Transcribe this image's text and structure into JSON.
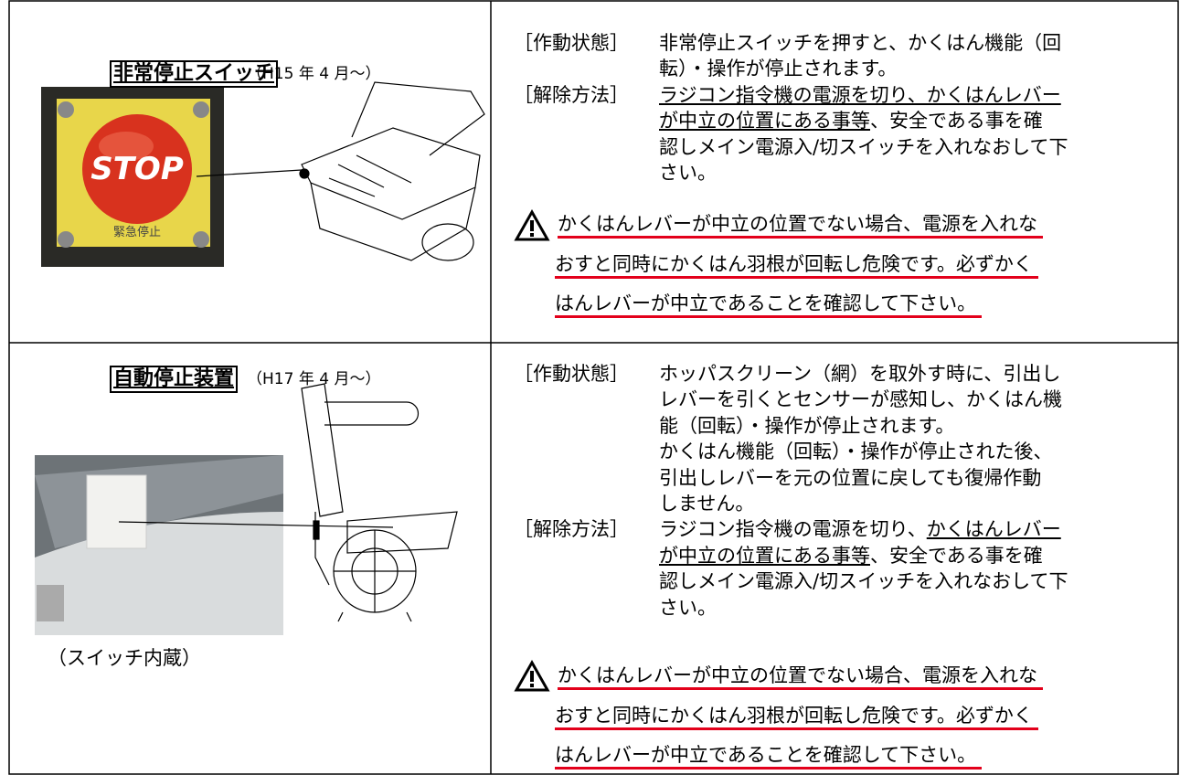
{
  "rows": [
    {
      "title": "非常停止スイッチ",
      "date": "（H15 年 4 月～）",
      "photo_text": [
        "STOP",
        "緊急停止"
      ],
      "sections": [
        {
          "label": "［作動状態］",
          "lines": [
            [
              {
                "text": "非常停止スイッチを押すと、かくはん機能（回"
              }
            ],
            [
              {
                "text": "転）・操作が停止されます。"
              }
            ]
          ]
        },
        {
          "label": "［解除方法］",
          "lines": [
            [
              {
                "text": "ラジコン指令機の電源を切り、かくはんレバー",
                "underline": true
              }
            ],
            [
              {
                "text": "が中立の位置にある事等",
                "underline": true
              },
              {
                "text": "、安全である事を確"
              }
            ],
            [
              {
                "text": "認しメイン電源入/切スイッチを入れなおして下"
              }
            ],
            [
              {
                "text": "さい。"
              }
            ]
          ]
        }
      ],
      "warning": [
        "かくはんレバーが中立の位置でない場合、電源を入れな",
        "おすと同時にかくはん羽根が回転し危険です。必ずかく",
        "はんレバーが中立であることを確認して下さい。"
      ]
    },
    {
      "title": "自動停止装置",
      "date": "（H17 年 4 月～）",
      "caption": "（スイッチ内蔵）",
      "sections": [
        {
          "label": "［作動状態］",
          "lines": [
            [
              {
                "text": "ホッパスクリーン（網）を取外す時に、引出し"
              }
            ],
            [
              {
                "text": "レバーを引くとセンサーが感知し、かくはん機"
              }
            ],
            [
              {
                "text": "能（回転）・操作が停止されます。"
              }
            ],
            [
              {
                "text": "かくはん機能（回転）・操作が停止された後、"
              }
            ],
            [
              {
                "text": "引出しレバーを元の位置に戻しても復帰作動"
              }
            ],
            [
              {
                "text": "しません。"
              }
            ]
          ]
        },
        {
          "label": "［解除方法］",
          "lines": [
            [
              {
                "text": "ラジコン指令機の電源を切り、"
              },
              {
                "text": "かくはんレバー",
                "underline": true
              }
            ],
            [
              {
                "text": "が中立の位置にある事等",
                "underline": true
              },
              {
                "text": "、安全である事を確"
              }
            ],
            [
              {
                "text": "認しメイン電源入/切スイッチを入れなおして下"
              }
            ],
            [
              {
                "text": "さい。"
              }
            ]
          ]
        }
      ],
      "warning": [
        "かくはんレバーが中立の位置でない場合、電源を入れな",
        "おすと同時にかくはん羽根が回転し危険です。必ずかく",
        "はんレバーが中立であることを確認して下さい。"
      ]
    }
  ]
}
